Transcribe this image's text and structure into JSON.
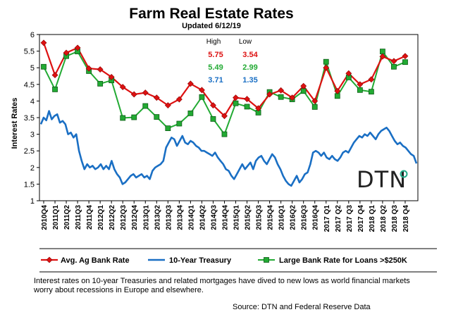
{
  "chart_data": {
    "type": "line",
    "title": "Farm Real Estate Rates",
    "subtitle": "Updated 6/12/19",
    "ylabel": "Interest Rates",
    "ylim": [
      1,
      6
    ],
    "yticks": [
      "1",
      "1.5",
      "2",
      "2.5",
      "3",
      "3.5",
      "4",
      "4.5",
      "5",
      "5.5",
      "6"
    ],
    "categories": [
      "2010Q4",
      "2011Q1",
      "2011Q2",
      "2011Q3",
      "2011Q4",
      "2012Q1",
      "2012Q2",
      "2012Q3",
      "2012Q4",
      "2013Q1",
      "2013Q2",
      "2013Q3",
      "2013Q4",
      "2014Q1",
      "2014Q2",
      "2014Q3",
      "2014Q4",
      "2015Q1",
      "2015Q2",
      "2015Q3",
      "2015Q4",
      "2016Q1",
      "2016Q2",
      "2016Q3",
      "2016Q4",
      "2017 Q1",
      "2017 Q2",
      "2017 Q3",
      "2017 Q4",
      "2018 Q1",
      "2018 Q2",
      "2018 Q3",
      "2018 Q4"
    ],
    "xtick_labels": [
      "2010Q4",
      "2011Q1",
      "2011Q2",
      "2011Q3",
      "2011Q4",
      "2012Q1",
      "2012Q2",
      "2012Q3",
      "2012Q4",
      "2013Q1",
      "2013Q2",
      "2013Q3",
      "2013Q4",
      "2014Q1",
      "2014Q2",
      "2014Q3",
      "2014Q4",
      "2015Q1",
      "2015Q2",
      "2015Q3",
      "2015Q4",
      "2016Q1",
      "2016Q2",
      "2016Q3",
      "2016Q4",
      "2017 Q1",
      "2017 Q2",
      "2017 Q3",
      "2017 Q4",
      "2018 Q1",
      "2018 Q2",
      "2018 Q3",
      "2018 Q4"
    ],
    "series": [
      {
        "name": "Avg. Ag Bank Rate",
        "color": "#dd1111",
        "marker": "diamond",
        "values": [
          5.75,
          4.78,
          5.45,
          5.6,
          4.98,
          4.95,
          4.72,
          4.42,
          4.2,
          4.25,
          4.1,
          3.87,
          4.05,
          4.52,
          4.33,
          3.87,
          3.55,
          4.1,
          4.06,
          3.78,
          4.2,
          4.32,
          4.1,
          4.45,
          4.0,
          5.0,
          4.3,
          4.83,
          4.5,
          4.65,
          5.34,
          5.2,
          5.35
        ]
      },
      {
        "name": "Large Bank Rate for Loans >$250K",
        "color": "#22aa33",
        "marker": "square",
        "values": [
          5.03,
          4.35,
          5.35,
          5.49,
          4.9,
          4.52,
          4.62,
          3.49,
          3.51,
          3.85,
          3.52,
          3.18,
          3.32,
          3.63,
          4.12,
          3.46,
          3.0,
          3.93,
          3.83,
          3.65,
          4.27,
          4.12,
          4.05,
          4.3,
          3.82,
          5.18,
          4.15,
          4.71,
          4.33,
          4.28,
          5.49,
          5.03,
          5.17
        ]
      },
      {
        "name": "10-Year Treasury",
        "color": "#1a6fc4",
        "marker": "none",
        "x_start": "2010Q4",
        "points": [
          3.3,
          3.5,
          3.42,
          3.7,
          3.45,
          3.55,
          3.6,
          3.35,
          3.4,
          3.3,
          3.0,
          3.05,
          2.9,
          3.0,
          2.5,
          2.2,
          1.95,
          2.1,
          2.0,
          2.05,
          1.95,
          2.0,
          2.1,
          1.95,
          2.05,
          1.95,
          2.2,
          1.95,
          1.8,
          1.7,
          1.5,
          1.55,
          1.65,
          1.75,
          1.8,
          1.7,
          1.75,
          1.8,
          1.7,
          1.75,
          1.65,
          1.9,
          2.0,
          2.05,
          2.1,
          2.2,
          2.6,
          2.75,
          2.9,
          2.85,
          2.65,
          2.8,
          2.95,
          2.75,
          2.7,
          2.8,
          2.75,
          2.65,
          2.6,
          2.5,
          2.5,
          2.45,
          2.4,
          2.35,
          2.45,
          2.3,
          2.2,
          2.1,
          1.95,
          1.9,
          1.75,
          1.65,
          1.8,
          1.95,
          2.1,
          1.95,
          2.05,
          2.15,
          1.95,
          2.2,
          2.3,
          2.35,
          2.2,
          2.1,
          2.25,
          2.4,
          2.3,
          2.1,
          1.95,
          1.75,
          1.6,
          1.5,
          1.45,
          1.6,
          1.75,
          1.55,
          1.65,
          1.8,
          1.85,
          2.1,
          2.45,
          2.5,
          2.45,
          2.35,
          2.45,
          2.3,
          2.25,
          2.35,
          2.25,
          2.2,
          2.3,
          2.45,
          2.5,
          2.45,
          2.6,
          2.75,
          2.85,
          2.95,
          2.9,
          3.0,
          2.95,
          3.05,
          2.95,
          2.85,
          3.0,
          3.1,
          3.15,
          3.2,
          3.1,
          2.95,
          2.8,
          2.7,
          2.75,
          2.65,
          2.6,
          2.5,
          2.4,
          2.35,
          2.12
        ]
      }
    ],
    "table": {
      "headers": [
        "High",
        "Low"
      ],
      "rows": [
        {
          "high": "5.75",
          "low": "3.54",
          "color": "#dd1111"
        },
        {
          "high": "5.49",
          "low": "2.99",
          "color": "#22aa33"
        },
        {
          "high": "3.71",
          "low": "1.35",
          "color": "#1a6fc4"
        }
      ]
    },
    "legend": {
      "placement": "bottom",
      "items": [
        "Avg. Ag Bank Rate",
        "10-Year Treasury",
        "Large Bank Rate for Loans >$250K"
      ]
    },
    "grid": false
  },
  "note": "Interest rates on 10-year Treasuries and related mortgages have dived to new lows as world financial markets worry about recessions in Europe and elsewhere.",
  "source": "Source: DTN and Federal Reserve Data",
  "logo": {
    "text": "DTN"
  }
}
